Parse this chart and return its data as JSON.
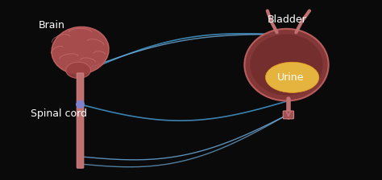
{
  "background_color": "#0a0a0a",
  "brain_label": "Brain",
  "spinal_cord_label": "Spinal cord",
  "bladder_label": "Bladder",
  "urine_label": "Urine",
  "label_color": "#ffffff",
  "label_fontsize": 9,
  "brain_color": "#b05050",
  "brain_outline_color": "#c06060",
  "spinal_cord_color": "#c07070",
  "bladder_color": "#8b3a3a",
  "bladder_outline_color": "#c06060",
  "urine_color": "#e8a020",
  "urine_fill_color": "#f0c040",
  "nerve_color_blue": "#4090c0",
  "nerve_color_light": "#70b0e0",
  "node_color": "#8080cc",
  "arrow_color": "#c07070",
  "figsize": [
    4.74,
    2.24
  ],
  "dpi": 100
}
